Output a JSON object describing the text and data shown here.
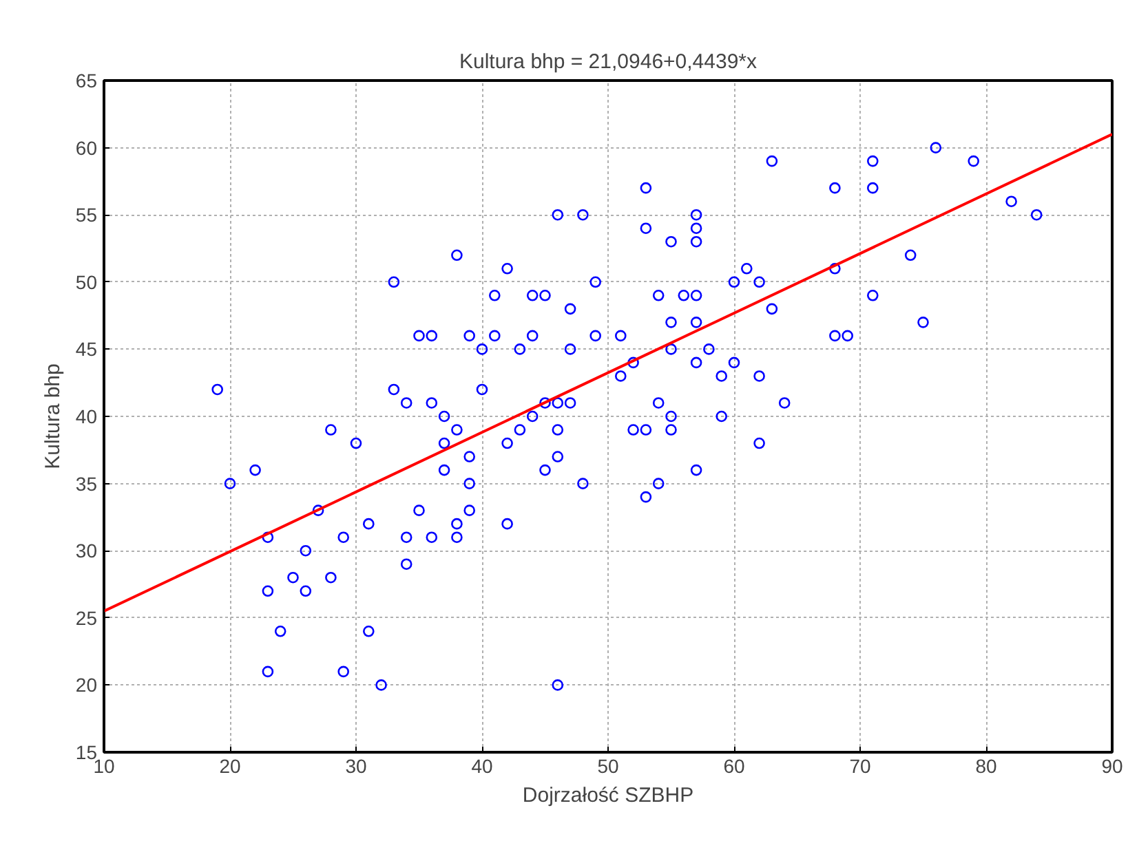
{
  "chart_data": {
    "type": "scatter",
    "title": "Kultura bhp = 21,0946+0,4439*x",
    "xlabel": "Dojrzałość SZBHP",
    "ylabel": "Kultura bhp",
    "xlim": [
      10,
      90
    ],
    "xticks": [
      10,
      20,
      30,
      40,
      50,
      60,
      70,
      80,
      90
    ],
    "ylim": [
      15,
      65
    ],
    "yticks": [
      15,
      20,
      25,
      30,
      35,
      40,
      45,
      50,
      55,
      60,
      65
    ],
    "grid": true,
    "series": [
      {
        "color": "#0000ff",
        "marker": "circle",
        "x": [
          19,
          20,
          22,
          23,
          23,
          23,
          24,
          25,
          26,
          26,
          27,
          28,
          28,
          29,
          29,
          30,
          31,
          31,
          32,
          33,
          33,
          34,
          34,
          34,
          35,
          35,
          36,
          36,
          36,
          37,
          37,
          37,
          38,
          38,
          38,
          38,
          39,
          39,
          39,
          39,
          40,
          40,
          41,
          41,
          42,
          42,
          42,
          43,
          43,
          44,
          44,
          44,
          45,
          45,
          45,
          46,
          46,
          46,
          46,
          46,
          47,
          47,
          47,
          48,
          48,
          49,
          49,
          51,
          51,
          52,
          52,
          53,
          53,
          53,
          53,
          54,
          54,
          54,
          55,
          55,
          55,
          55,
          55,
          56,
          57,
          57,
          57,
          57,
          57,
          57,
          57,
          58,
          59,
          59,
          60,
          60,
          61,
          62,
          62,
          62,
          63,
          63,
          64,
          68,
          68,
          68,
          69,
          71,
          71,
          71,
          74,
          75,
          76,
          79,
          82,
          84
        ],
        "values": [
          42,
          35,
          36,
          31,
          27,
          21,
          24,
          28,
          30,
          27,
          33,
          39,
          28,
          31,
          21,
          38,
          32,
          24,
          20,
          50,
          42,
          41,
          31,
          29,
          46,
          33,
          46,
          41,
          31,
          40,
          38,
          36,
          52,
          39,
          32,
          31,
          46,
          37,
          35,
          33,
          45,
          42,
          49,
          46,
          51,
          38,
          32,
          45,
          39,
          49,
          46,
          40,
          49,
          41,
          36,
          55,
          41,
          39,
          37,
          20,
          48,
          45,
          41,
          55,
          35,
          50,
          46,
          46,
          43,
          44,
          39,
          57,
          54,
          39,
          34,
          49,
          41,
          35,
          53,
          47,
          45,
          40,
          39,
          49,
          55,
          54,
          53,
          49,
          47,
          44,
          36,
          45,
          43,
          40,
          50,
          44,
          51,
          50,
          43,
          38,
          59,
          48,
          41,
          57,
          51,
          46,
          46,
          59,
          57,
          49,
          52,
          47,
          60,
          59,
          56,
          55
        ]
      },
      {
        "type": "line",
        "color": "#ff0000",
        "line_style": "solid",
        "marker": "none",
        "x": [
          10,
          90
        ],
        "values": [
          25.5,
          61.0
        ]
      }
    ]
  }
}
